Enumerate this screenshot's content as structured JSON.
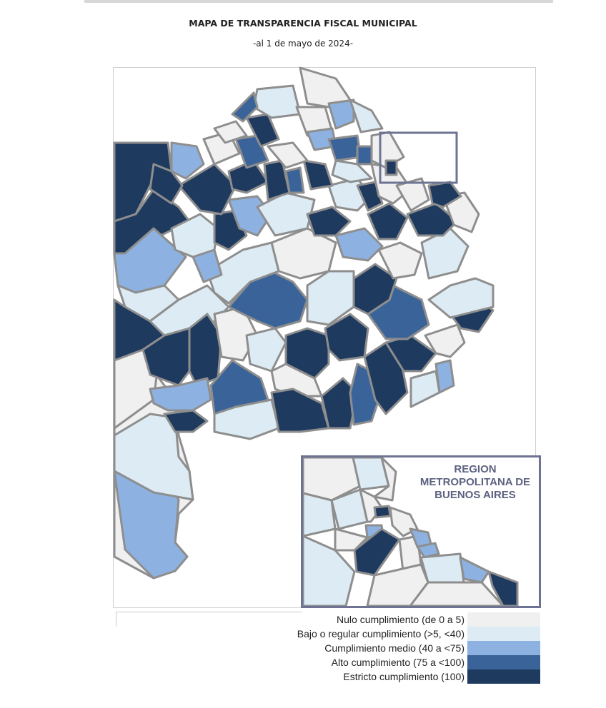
{
  "title": "MAPA DE TRANSPARENCIA FISCAL MUNICIPAL",
  "subtitle": "-al 1 de mayo de 2024-",
  "inset": {
    "title": "REGION METROPOLITANA DE BUENOS AIRES"
  },
  "legend": [
    {
      "label": "Nulo cumplimiento (de 0 a 5)",
      "color": "#f0f0f0"
    },
    {
      "label": "Bajo o regular cumplimiento (>5, <40)",
      "color": "#dcebf4"
    },
    {
      "label": "Cumplimiento medio (40 a <75)",
      "color": "#8db2e2"
    },
    {
      "label": "Alto cumplimiento (75 a <100)",
      "color": "#3a6499"
    },
    {
      "label": "Estricto cumplimiento (100)",
      "color": "#1f3a5f"
    }
  ]
}
